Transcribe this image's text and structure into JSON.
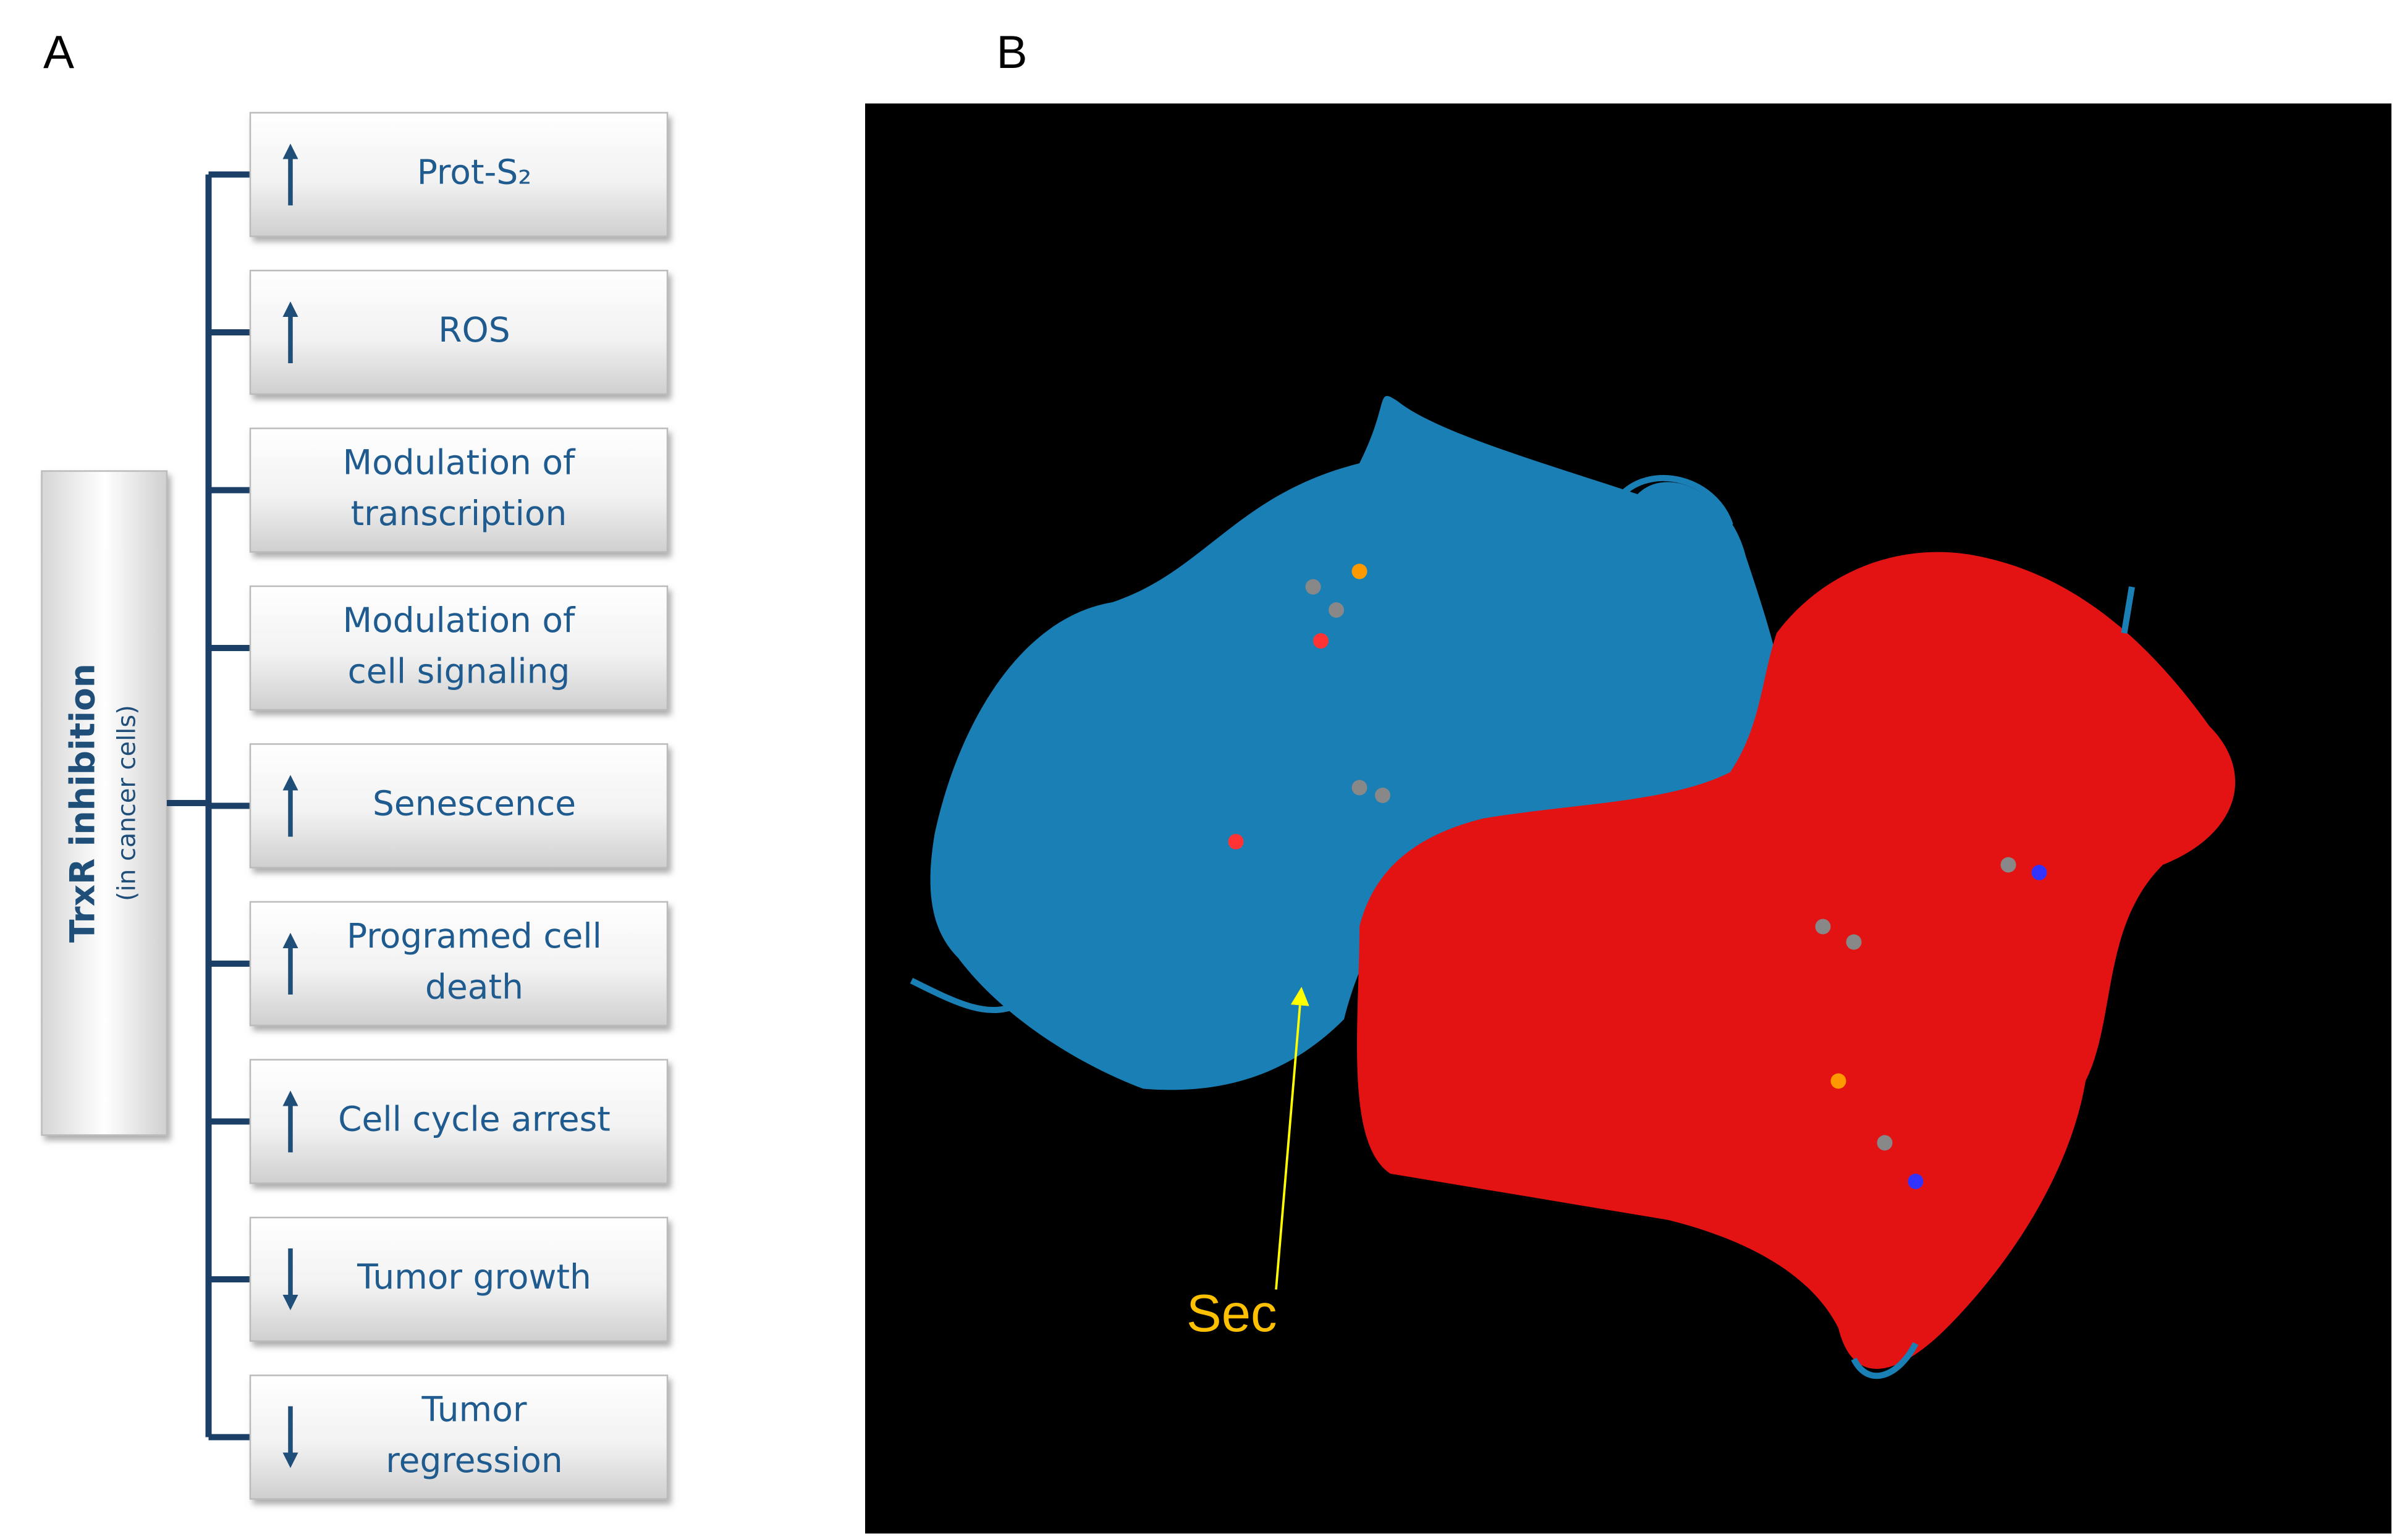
{
  "panel_a": {
    "label": "A",
    "root": {
      "title": "TrxR inhibition",
      "subtitle": "(in cancer cells)"
    },
    "nodes": [
      {
        "lines": [
          "Prot-S₂"
        ],
        "arrow": "up"
      },
      {
        "lines": [
          "ROS"
        ],
        "arrow": "up"
      },
      {
        "lines": [
          "Modulation of",
          "transcription"
        ]
      },
      {
        "lines": [
          "Modulation of",
          "cell signaling"
        ]
      },
      {
        "lines": [
          "Senescence"
        ],
        "arrow": "up"
      },
      {
        "lines": [
          "Programed cell",
          "death"
        ],
        "arrow": "up"
      },
      {
        "lines": [
          "Cell cycle arrest"
        ],
        "arrow": "up"
      },
      {
        "lines": [
          "Tumor growth"
        ],
        "arrow": "down"
      },
      {
        "lines": [
          "Tumor",
          "regression"
        ],
        "arrow": "down"
      }
    ]
  },
  "panel_b": {
    "label": "B",
    "annotation": "Sec"
  }
}
